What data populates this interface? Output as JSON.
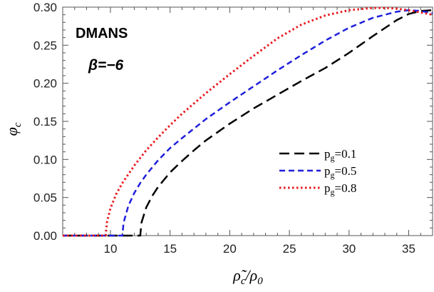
{
  "chart_data": {
    "type": "line",
    "title": "",
    "annotations": [
      "DMANS",
      "β=−6"
    ],
    "xlabel": {
      "base": "ρ̃",
      "sub": "c",
      "sep": "/",
      "base2": "ρ",
      "sub2": "0"
    },
    "ylabel": {
      "base": "φ",
      "sub": "c"
    },
    "xlim": [
      6,
      37
    ],
    "ylim": [
      0,
      0.3
    ],
    "xticks": [
      10,
      15,
      20,
      25,
      30,
      35
    ],
    "yticks": [
      0.0,
      0.05,
      0.1,
      0.15,
      0.2,
      0.25,
      0.3
    ],
    "ytick_labels": [
      "0.00",
      "0.05",
      "0.10",
      "0.15",
      "0.20",
      "0.25",
      "0.30"
    ],
    "legend_position": "right-middle",
    "series": [
      {
        "name": {
          "base": "p",
          "sub": "g",
          "rest": "=0.1"
        },
        "color": "#000000",
        "dash": "long-dash",
        "x": [
          6,
          12.5,
          12.6,
          13,
          13.5,
          14,
          15,
          16,
          17,
          18,
          20,
          22,
          24,
          26,
          28,
          30,
          32,
          34,
          35,
          36,
          37
        ],
        "y": [
          0,
          0,
          0.017,
          0.037,
          0.052,
          0.064,
          0.083,
          0.098,
          0.112,
          0.125,
          0.147,
          0.167,
          0.185,
          0.203,
          0.22,
          0.24,
          0.262,
          0.283,
          0.291,
          0.295,
          0.296
        ]
      },
      {
        "name": {
          "base": "p",
          "sub": "g",
          "rest": "=0.5"
        },
        "color": "#1f1fdb",
        "dash": "dash",
        "x": [
          6,
          11,
          11.1,
          11.5,
          12,
          12.5,
          13,
          14,
          15,
          16,
          18,
          20,
          22,
          24,
          26,
          28,
          30,
          32,
          34,
          35,
          36,
          37
        ],
        "y": [
          0,
          0,
          0.017,
          0.039,
          0.056,
          0.069,
          0.08,
          0.099,
          0.115,
          0.128,
          0.153,
          0.175,
          0.196,
          0.217,
          0.237,
          0.256,
          0.273,
          0.286,
          0.294,
          0.296,
          0.295,
          0.292
        ]
      },
      {
        "name": {
          "base": "p",
          "sub": "g",
          "rest": "=0.8"
        },
        "color": "#e8191f",
        "dash": "dot",
        "x": [
          6,
          9.6,
          9.7,
          10,
          10.5,
          11,
          12,
          13,
          14,
          15,
          16,
          18,
          20,
          22,
          24,
          26,
          28,
          30,
          32,
          33,
          34,
          35,
          36,
          37
        ],
        "y": [
          0,
          0,
          0.017,
          0.036,
          0.055,
          0.069,
          0.092,
          0.112,
          0.129,
          0.145,
          0.16,
          0.187,
          0.212,
          0.236,
          0.259,
          0.277,
          0.289,
          0.296,
          0.299,
          0.299,
          0.298,
          0.296,
          0.293,
          0.29
        ]
      }
    ]
  }
}
